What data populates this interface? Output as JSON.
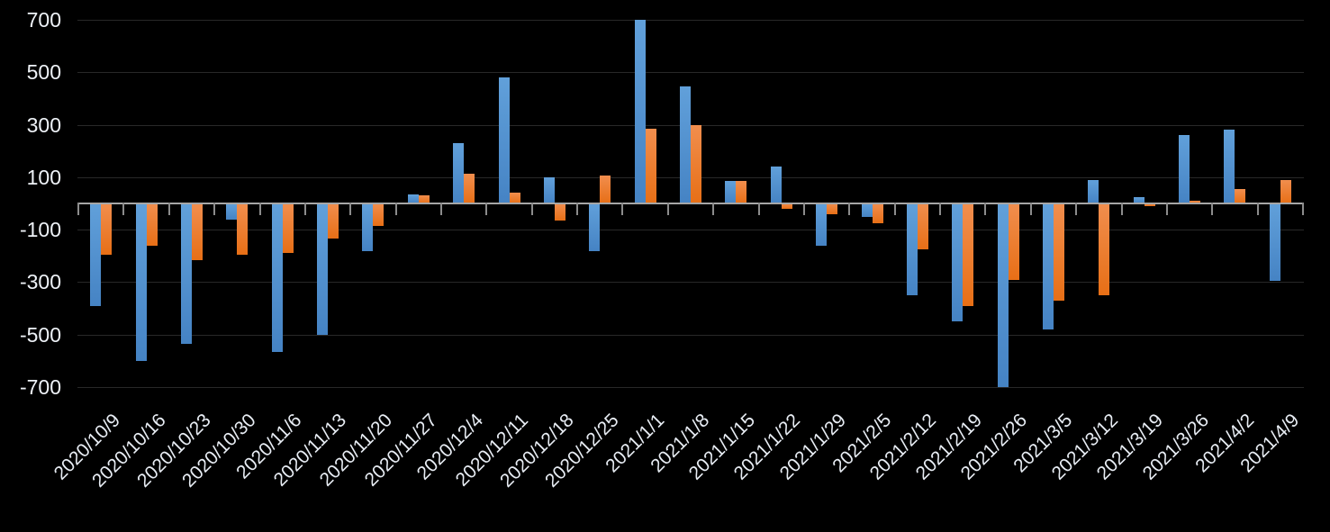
{
  "chart_data": {
    "type": "bar",
    "title": "",
    "xlabel": "",
    "ylabel": "",
    "categories": [
      "2020/10/9",
      "2020/10/16",
      "2020/10/23",
      "2020/10/30",
      "2020/11/6",
      "2020/11/13",
      "2020/11/20",
      "2020/11/27",
      "2020/12/4",
      "2020/12/11",
      "2020/12/18",
      "2020/12/25",
      "2021/1/1",
      "2021/1/8",
      "2021/1/15",
      "2021/1/22",
      "2021/1/29",
      "2021/2/5",
      "2021/2/12",
      "2021/2/19",
      "2021/2/26",
      "2021/3/5",
      "2021/3/12",
      "2021/3/19",
      "2021/3/26",
      "2021/4/2",
      "2021/4/9"
    ],
    "series": [
      {
        "name": "blue-series",
        "color": "#5b9bd5",
        "values": [
          -390,
          -600,
          -535,
          -60,
          -565,
          -500,
          -180,
          35,
          230,
          480,
          100,
          -180,
          700,
          445,
          85,
          140,
          -160,
          -50,
          -350,
          -450,
          -700,
          -480,
          90,
          25,
          260,
          280,
          -295
        ]
      },
      {
        "name": "orange-series",
        "color": "#ed7d31",
        "values": [
          -195,
          -160,
          -215,
          -195,
          -190,
          -135,
          -85,
          30,
          115,
          40,
          -65,
          105,
          285,
          300,
          85,
          -20,
          -40,
          -75,
          -175,
          -390,
          -290,
          -370,
          -350,
          -10,
          10,
          55,
          90
        ]
      }
    ],
    "ylim": [
      -700,
      700
    ],
    "yticks": [
      700,
      500,
      300,
      100,
      -100,
      -300,
      -500,
      -700
    ],
    "ytick_interval": 200,
    "grid": true,
    "legend_position": "none",
    "background_color": "#000000",
    "axis_line_color": "#a6a6a6",
    "gridline_color": "#282828",
    "label_color": "#eef2f7"
  }
}
